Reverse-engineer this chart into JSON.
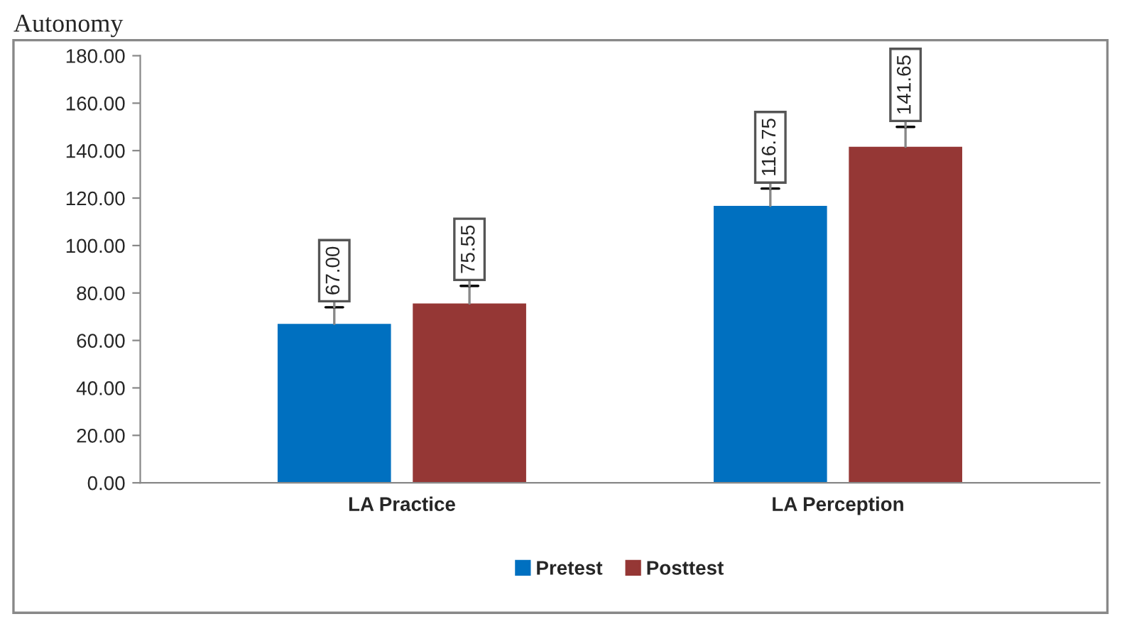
{
  "chart_data": {
    "type": "bar",
    "title": "Autonomy",
    "categories": [
      "LA Practice",
      "LA Perception"
    ],
    "series": [
      {
        "name": "Pretest",
        "color": "#0070c0",
        "values": [
          67.0,
          116.75
        ],
        "value_labels": [
          "67.00",
          "116.75"
        ],
        "errors": [
          [
            67.0,
            74
          ],
          [
            116.75,
            124
          ]
        ]
      },
      {
        "name": "Posttest",
        "color": "#953735",
        "values": [
          75.55,
          141.65
        ],
        "value_labels": [
          "75.55",
          "141.65"
        ],
        "errors": [
          [
            75.55,
            83
          ],
          [
            141.65,
            150
          ]
        ]
      }
    ],
    "ylim": [
      0,
      180
    ],
    "yticks": [
      {
        "value": 0,
        "label": "0.00"
      },
      {
        "value": 20,
        "label": "20.00"
      },
      {
        "value": 40,
        "label": "40.00"
      },
      {
        "value": 60,
        "label": "60.00"
      },
      {
        "value": 80,
        "label": "80.00"
      },
      {
        "value": 100,
        "label": "100.00"
      },
      {
        "value": 120,
        "label": "120.00"
      },
      {
        "value": 140,
        "label": "140.00"
      },
      {
        "value": 160,
        "label": "160.00"
      },
      {
        "value": 180,
        "label": "180.00"
      }
    ],
    "grid": false,
    "legend": "bottom"
  }
}
